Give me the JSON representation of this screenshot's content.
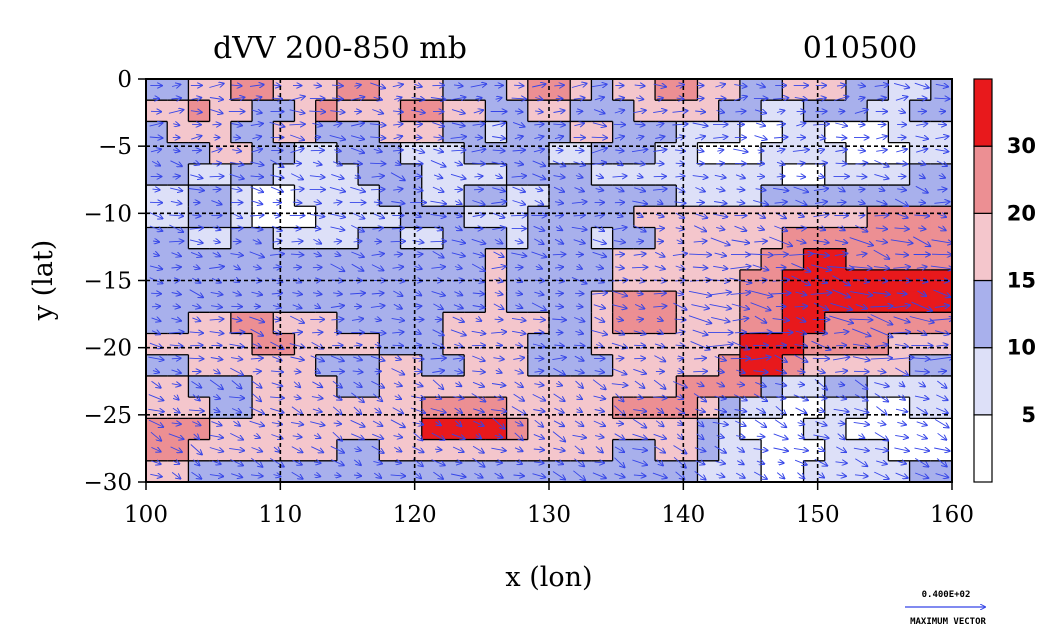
{
  "chart_data": {
    "type": "heatmap",
    "title": "dVV 200-850 mb",
    "date_label": "010500",
    "xlabel": "x (lon)",
    "ylabel": "y (lat)",
    "xlim": [
      100,
      160
    ],
    "ylim": [
      -30,
      0
    ],
    "x_ticks": [
      "100",
      "110",
      "120",
      "130",
      "140",
      "150",
      "160"
    ],
    "y_ticks": [
      "0",
      "−5",
      "−10",
      "−15",
      "−20",
      "−25",
      "−30"
    ],
    "grid": true,
    "grid_style": "dashed",
    "colorbar": {
      "levels": [
        0,
        5,
        10,
        15,
        20,
        30,
        40
      ],
      "labels": [
        "5",
        "10",
        "15",
        "20",
        "30"
      ],
      "colors": [
        "#ffffff",
        "#dde0f8",
        "#a8b0ec",
        "#f4c6cc",
        "#ec8f93",
        "#e8191c"
      ]
    },
    "field_rows": [
      [
        2,
        2,
        3,
        3,
        4,
        4,
        3,
        3,
        3,
        4,
        4,
        3,
        3,
        3,
        2,
        2,
        2,
        3,
        4,
        4,
        3,
        2,
        3,
        3,
        4,
        4,
        3,
        3,
        2,
        2,
        3,
        3,
        3,
        2,
        2,
        1,
        1,
        2
      ],
      [
        3,
        3,
        4,
        3,
        3,
        2,
        2,
        3,
        4,
        3,
        3,
        3,
        4,
        4,
        3,
        3,
        2,
        2,
        3,
        3,
        2,
        2,
        2,
        3,
        3,
        3,
        3,
        2,
        2,
        1,
        1,
        2,
        2,
        2,
        1,
        1,
        2,
        2
      ],
      [
        2,
        3,
        3,
        3,
        2,
        2,
        3,
        3,
        2,
        2,
        2,
        3,
        3,
        3,
        2,
        2,
        1,
        2,
        2,
        2,
        3,
        3,
        2,
        2,
        2,
        1,
        1,
        1,
        0,
        0,
        1,
        1,
        0,
        0,
        0,
        1,
        1,
        1
      ],
      [
        2,
        2,
        2,
        3,
        3,
        2,
        2,
        1,
        1,
        2,
        2,
        2,
        1,
        1,
        1,
        2,
        2,
        2,
        2,
        1,
        1,
        2,
        2,
        2,
        1,
        1,
        0,
        0,
        0,
        1,
        1,
        1,
        1,
        0,
        0,
        0,
        1,
        1
      ],
      [
        2,
        2,
        1,
        1,
        2,
        2,
        1,
        1,
        1,
        1,
        2,
        2,
        2,
        1,
        1,
        1,
        1,
        2,
        2,
        2,
        2,
        1,
        1,
        1,
        1,
        1,
        1,
        1,
        1,
        1,
        0,
        0,
        1,
        1,
        1,
        1,
        2,
        2
      ],
      [
        1,
        1,
        2,
        2,
        1,
        0,
        0,
        1,
        1,
        1,
        1,
        2,
        2,
        1,
        1,
        2,
        2,
        1,
        1,
        2,
        2,
        2,
        2,
        2,
        2,
        1,
        1,
        1,
        1,
        2,
        2,
        2,
        2,
        2,
        2,
        2,
        2,
        2
      ],
      [
        1,
        1,
        2,
        2,
        1,
        0,
        0,
        0,
        1,
        1,
        1,
        1,
        2,
        2,
        2,
        1,
        1,
        1,
        2,
        2,
        2,
        2,
        2,
        3,
        3,
        3,
        3,
        3,
        3,
        3,
        3,
        3,
        3,
        3,
        4,
        4,
        4,
        4
      ],
      [
        2,
        2,
        1,
        1,
        2,
        2,
        1,
        1,
        1,
        1,
        2,
        2,
        1,
        1,
        2,
        2,
        2,
        1,
        2,
        2,
        2,
        1,
        2,
        2,
        3,
        3,
        3,
        3,
        3,
        3,
        4,
        4,
        4,
        4,
        4,
        4,
        4,
        4
      ],
      [
        2,
        2,
        2,
        2,
        2,
        2,
        2,
        2,
        2,
        2,
        2,
        2,
        2,
        2,
        2,
        2,
        3,
        2,
        2,
        2,
        2,
        2,
        3,
        3,
        3,
        3,
        3,
        3,
        3,
        4,
        4,
        5,
        5,
        4,
        4,
        4,
        4,
        4
      ],
      [
        2,
        2,
        2,
        2,
        2,
        2,
        2,
        2,
        2,
        2,
        2,
        2,
        2,
        2,
        2,
        2,
        3,
        2,
        2,
        2,
        2,
        2,
        3,
        3,
        3,
        3,
        3,
        3,
        4,
        4,
        5,
        5,
        5,
        5,
        5,
        5,
        5,
        5
      ],
      [
        2,
        2,
        2,
        2,
        2,
        2,
        2,
        2,
        2,
        2,
        2,
        2,
        2,
        2,
        2,
        2,
        3,
        2,
        2,
        2,
        2,
        3,
        4,
        4,
        4,
        3,
        3,
        3,
        4,
        4,
        5,
        5,
        5,
        5,
        5,
        5,
        5,
        5
      ],
      [
        2,
        2,
        3,
        3,
        4,
        4,
        3,
        3,
        3,
        2,
        2,
        2,
        2,
        2,
        3,
        3,
        3,
        3,
        3,
        2,
        2,
        3,
        4,
        4,
        4,
        3,
        3,
        3,
        4,
        4,
        5,
        5,
        4,
        4,
        4,
        4,
        4,
        4
      ],
      [
        3,
        3,
        3,
        3,
        3,
        4,
        4,
        3,
        3,
        3,
        3,
        2,
        2,
        2,
        3,
        3,
        3,
        3,
        2,
        2,
        2,
        3,
        3,
        3,
        3,
        3,
        3,
        3,
        5,
        5,
        5,
        4,
        4,
        4,
        4,
        3,
        3,
        3
      ],
      [
        2,
        2,
        3,
        3,
        3,
        3,
        3,
        3,
        2,
        2,
        2,
        3,
        3,
        2,
        2,
        3,
        3,
        3,
        2,
        2,
        2,
        2,
        3,
        3,
        3,
        3,
        3,
        4,
        5,
        5,
        4,
        3,
        3,
        3,
        3,
        3,
        2,
        2
      ],
      [
        3,
        3,
        2,
        2,
        2,
        3,
        3,
        3,
        3,
        2,
        2,
        3,
        3,
        3,
        3,
        3,
        3,
        3,
        3,
        3,
        3,
        3,
        3,
        3,
        3,
        4,
        4,
        4,
        4,
        2,
        1,
        1,
        2,
        2,
        1,
        1,
        1,
        1
      ],
      [
        3,
        3,
        3,
        2,
        2,
        3,
        3,
        3,
        3,
        3,
        3,
        3,
        3,
        4,
        4,
        4,
        4,
        3,
        3,
        3,
        3,
        3,
        4,
        4,
        4,
        4,
        3,
        2,
        1,
        1,
        0,
        0,
        1,
        1,
        0,
        0,
        1,
        1
      ],
      [
        4,
        4,
        4,
        3,
        3,
        3,
        3,
        3,
        3,
        3,
        3,
        3,
        3,
        5,
        5,
        5,
        5,
        4,
        3,
        3,
        3,
        3,
        3,
        3,
        3,
        3,
        2,
        1,
        0,
        0,
        0,
        1,
        1,
        0,
        0,
        0,
        0,
        0
      ],
      [
        4,
        4,
        3,
        3,
        3,
        3,
        3,
        3,
        3,
        2,
        2,
        3,
        3,
        3,
        3,
        3,
        3,
        3,
        3,
        3,
        3,
        3,
        2,
        2,
        3,
        3,
        2,
        1,
        1,
        0,
        0,
        0,
        1,
        1,
        1,
        0,
        0,
        0
      ],
      [
        3,
        3,
        2,
        2,
        2,
        2,
        2,
        2,
        2,
        2,
        2,
        2,
        2,
        2,
        2,
        2,
        2,
        2,
        2,
        2,
        2,
        2,
        2,
        2,
        2,
        2,
        1,
        1,
        1,
        0,
        0,
        1,
        1,
        1,
        1,
        1,
        2,
        2
      ]
    ],
    "max_vector_value": "0.400E+02",
    "max_vector_label": "MAXIMUM VECTOR"
  }
}
